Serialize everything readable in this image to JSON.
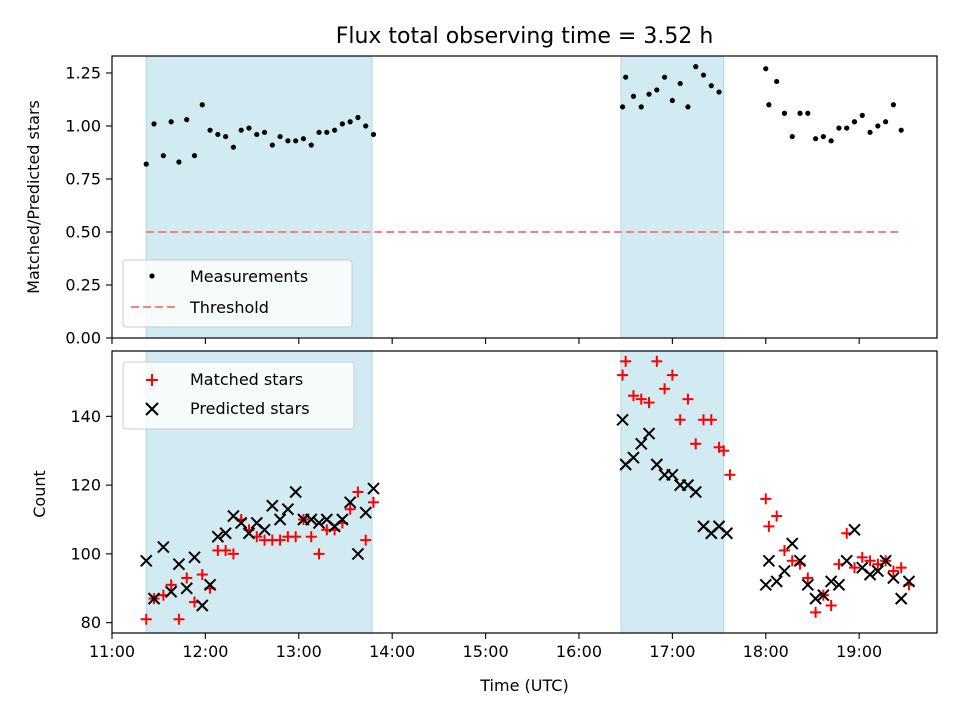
{
  "chart_data": [
    {
      "type": "scatter",
      "title": "Flux total observing time = 3.52 h",
      "ylabel": "Matched/Predicted stars",
      "xlabel": "",
      "xlim": [
        "11:00",
        "19:50"
      ],
      "ylim": [
        0,
        1.33
      ],
      "yticks": [
        "0.00",
        "0.25",
        "0.50",
        "0.75",
        "1.00",
        "1.25"
      ],
      "ytick_values": [
        0,
        0.25,
        0.5,
        0.75,
        1.0,
        1.25
      ],
      "xtick_values": [
        "11:00",
        "12:00",
        "13:00",
        "14:00",
        "15:00",
        "16:00",
        "17:00",
        "18:00",
        "19:00"
      ],
      "shaded_intervals": [
        [
          "11:22",
          "13:47"
        ],
        [
          "16:27",
          "17:33"
        ]
      ],
      "shade_color": "#add8e6",
      "legend_position": "lower-left",
      "series": [
        {
          "name": "Measurements",
          "marker": "dot",
          "color": "#000000",
          "points": [
            [
              "11:22",
              0.82
            ],
            [
              "11:27",
              1.01
            ],
            [
              "11:33",
              0.86
            ],
            [
              "11:38",
              1.02
            ],
            [
              "11:43",
              0.83
            ],
            [
              "11:48",
              1.03
            ],
            [
              "11:53",
              0.86
            ],
            [
              "11:58",
              1.1
            ],
            [
              "12:03",
              0.98
            ],
            [
              "12:08",
              0.96
            ],
            [
              "12:13",
              0.95
            ],
            [
              "12:18",
              0.9
            ],
            [
              "12:23",
              0.98
            ],
            [
              "12:28",
              0.99
            ],
            [
              "12:33",
              0.96
            ],
            [
              "12:38",
              0.97
            ],
            [
              "12:43",
              0.91
            ],
            [
              "12:48",
              0.95
            ],
            [
              "12:53",
              0.93
            ],
            [
              "12:58",
              0.93
            ],
            [
              "13:03",
              0.94
            ],
            [
              "13:08",
              0.91
            ],
            [
              "13:13",
              0.97
            ],
            [
              "13:18",
              0.97
            ],
            [
              "13:23",
              0.98
            ],
            [
              "13:28",
              1.01
            ],
            [
              "13:33",
              1.02
            ],
            [
              "13:38",
              1.04
            ],
            [
              "13:43",
              1.0
            ],
            [
              "13:48",
              0.96
            ],
            [
              "16:28",
              1.09
            ],
            [
              "16:30",
              1.23
            ],
            [
              "16:35",
              1.14
            ],
            [
              "16:40",
              1.09
            ],
            [
              "16:45",
              1.15
            ],
            [
              "16:50",
              1.17
            ],
            [
              "16:55",
              1.23
            ],
            [
              "17:00",
              1.12
            ],
            [
              "17:05",
              1.2
            ],
            [
              "17:10",
              1.09
            ],
            [
              "17:15",
              1.28
            ],
            [
              "17:20",
              1.24
            ],
            [
              "17:25",
              1.19
            ],
            [
              "17:30",
              1.16
            ],
            [
              "18:00",
              1.27
            ],
            [
              "18:02",
              1.1
            ],
            [
              "18:07",
              1.21
            ],
            [
              "18:12",
              1.06
            ],
            [
              "18:17",
              0.95
            ],
            [
              "18:22",
              1.06
            ],
            [
              "18:27",
              1.06
            ],
            [
              "18:32",
              0.94
            ],
            [
              "18:37",
              0.95
            ],
            [
              "18:42",
              0.93
            ],
            [
              "18:47",
              0.99
            ],
            [
              "18:52",
              0.99
            ],
            [
              "18:57",
              1.02
            ],
            [
              "19:02",
              1.05
            ],
            [
              "19:07",
              0.97
            ],
            [
              "19:12",
              1.0
            ],
            [
              "19:17",
              1.02
            ],
            [
              "19:22",
              1.1
            ],
            [
              "19:27",
              0.98
            ]
          ]
        },
        {
          "name": "Threshold",
          "marker": "dashed-line",
          "color": "#ff7f7f",
          "points": [
            [
              "11:22",
              0.5
            ],
            [
              "19:27",
              0.5
            ]
          ]
        }
      ]
    },
    {
      "type": "scatter",
      "title": "",
      "ylabel": "Count",
      "xlabel": "Time (UTC)",
      "xlim": [
        "11:00",
        "19:50"
      ],
      "ylim": [
        77,
        159
      ],
      "yticks": [
        "80",
        "100",
        "120",
        "140"
      ],
      "ytick_values": [
        80,
        100,
        120,
        140
      ],
      "xticks": [
        "11:00",
        "12:00",
        "13:00",
        "14:00",
        "15:00",
        "16:00",
        "17:00",
        "18:00",
        "19:00"
      ],
      "xtick_values": [
        "11:00",
        "12:00",
        "13:00",
        "14:00",
        "15:00",
        "16:00",
        "17:00",
        "18:00",
        "19:00"
      ],
      "shaded_intervals": [
        [
          "11:22",
          "13:47"
        ],
        [
          "16:27",
          "17:33"
        ]
      ],
      "shade_color": "#add8e6",
      "legend_position": "upper-left",
      "series": [
        {
          "name": "Matched stars",
          "marker": "plus",
          "color": "#ff0000",
          "points": [
            [
              "11:22",
              81
            ],
            [
              "11:27",
              87
            ],
            [
              "11:33",
              88
            ],
            [
              "11:38",
              91
            ],
            [
              "11:43",
              81
            ],
            [
              "11:48",
              93
            ],
            [
              "11:53",
              86
            ],
            [
              "11:58",
              94
            ],
            [
              "12:03",
              90
            ],
            [
              "12:08",
              101
            ],
            [
              "12:13",
              101
            ],
            [
              "12:18",
              100
            ],
            [
              "12:23",
              110
            ],
            [
              "12:28",
              107
            ],
            [
              "12:33",
              105
            ],
            [
              "12:38",
              104
            ],
            [
              "12:43",
              104
            ],
            [
              "12:48",
              104
            ],
            [
              "12:53",
              105
            ],
            [
              "12:58",
              105
            ],
            [
              "13:03",
              110
            ],
            [
              "13:08",
              105
            ],
            [
              "13:13",
              100
            ],
            [
              "13:18",
              107
            ],
            [
              "13:23",
              107
            ],
            [
              "13:28",
              109
            ],
            [
              "13:33",
              113
            ],
            [
              "13:38",
              118
            ],
            [
              "13:43",
              104
            ],
            [
              "13:48",
              115
            ],
            [
              "16:28",
              152
            ],
            [
              "16:30",
              156
            ],
            [
              "16:35",
              146
            ],
            [
              "16:40",
              145
            ],
            [
              "16:45",
              144
            ],
            [
              "16:50",
              156
            ],
            [
              "16:55",
              148
            ],
            [
              "17:00",
              152
            ],
            [
              "17:05",
              139
            ],
            [
              "17:10",
              145
            ],
            [
              "17:15",
              132
            ],
            [
              "17:20",
              139
            ],
            [
              "17:25",
              139
            ],
            [
              "17:30",
              131
            ],
            [
              "17:33",
              130
            ],
            [
              "17:37",
              123
            ],
            [
              "18:00",
              116
            ],
            [
              "18:02",
              108
            ],
            [
              "18:07",
              111
            ],
            [
              "18:12",
              101
            ],
            [
              "18:17",
              98
            ],
            [
              "18:22",
              97
            ],
            [
              "18:27",
              93
            ],
            [
              "18:32",
              83
            ],
            [
              "18:37",
              88
            ],
            [
              "18:42",
              85
            ],
            [
              "18:47",
              97
            ],
            [
              "18:52",
              106
            ],
            [
              "18:57",
              96
            ],
            [
              "19:02",
              99
            ],
            [
              "19:07",
              98
            ],
            [
              "19:12",
              97
            ],
            [
              "19:17",
              98
            ],
            [
              "19:22",
              95
            ],
            [
              "19:27",
              96
            ],
            [
              "19:32",
              91
            ]
          ]
        },
        {
          "name": "Predicted stars",
          "marker": "x",
          "color": "#000000",
          "points": [
            [
              "11:22",
              98
            ],
            [
              "11:27",
              87
            ],
            [
              "11:33",
              102
            ],
            [
              "11:38",
              89
            ],
            [
              "11:43",
              97
            ],
            [
              "11:48",
              90
            ],
            [
              "11:53",
              99
            ],
            [
              "11:58",
              85
            ],
            [
              "12:03",
              91
            ],
            [
              "12:08",
              105
            ],
            [
              "12:13",
              106
            ],
            [
              "12:18",
              111
            ],
            [
              "12:23",
              109
            ],
            [
              "12:28",
              106
            ],
            [
              "12:33",
              109
            ],
            [
              "12:38",
              107
            ],
            [
              "12:43",
              114
            ],
            [
              "12:48",
              110
            ],
            [
              "12:53",
              113
            ],
            [
              "12:58",
              118
            ],
            [
              "13:03",
              110
            ],
            [
              "13:08",
              110
            ],
            [
              "13:13",
              109
            ],
            [
              "13:18",
              110
            ],
            [
              "13:23",
              108
            ],
            [
              "13:28",
              110
            ],
            [
              "13:33",
              115
            ],
            [
              "13:38",
              100
            ],
            [
              "13:43",
              112
            ],
            [
              "13:48",
              119
            ],
            [
              "16:28",
              139
            ],
            [
              "16:30",
              126
            ],
            [
              "16:35",
              128
            ],
            [
              "16:40",
              132
            ],
            [
              "16:45",
              135
            ],
            [
              "16:50",
              126
            ],
            [
              "16:55",
              123
            ],
            [
              "17:00",
              123
            ],
            [
              "17:05",
              120
            ],
            [
              "17:10",
              120
            ],
            [
              "17:15",
              118
            ],
            [
              "17:20",
              108
            ],
            [
              "17:25",
              106
            ],
            [
              "17:30",
              108
            ],
            [
              "17:35",
              106
            ],
            [
              "18:00",
              91
            ],
            [
              "18:02",
              98
            ],
            [
              "18:07",
              92
            ],
            [
              "18:12",
              95
            ],
            [
              "18:17",
              103
            ],
            [
              "18:22",
              98
            ],
            [
              "18:27",
              91
            ],
            [
              "18:32",
              87
            ],
            [
              "18:37",
              88
            ],
            [
              "18:42",
              92
            ],
            [
              "18:47",
              91
            ],
            [
              "18:52",
              98
            ],
            [
              "18:57",
              107
            ],
            [
              "19:02",
              96
            ],
            [
              "19:07",
              94
            ],
            [
              "19:12",
              95
            ],
            [
              "19:17",
              98
            ],
            [
              "19:22",
              93
            ],
            [
              "19:27",
              87
            ],
            [
              "19:32",
              92
            ]
          ]
        }
      ]
    }
  ]
}
